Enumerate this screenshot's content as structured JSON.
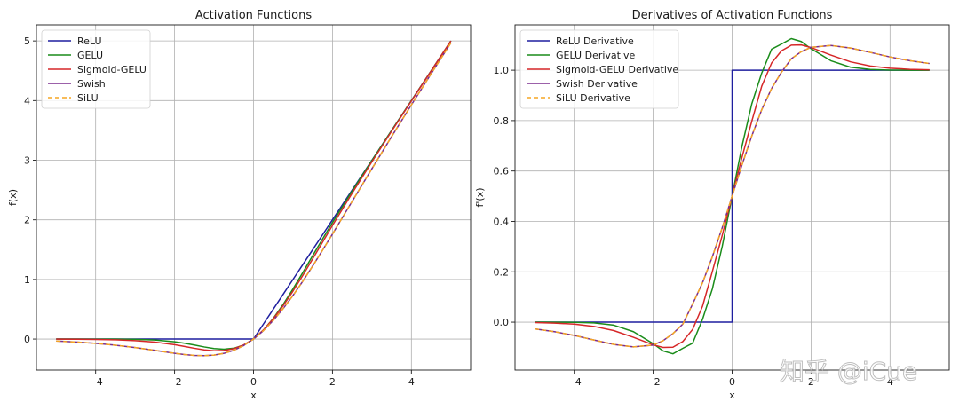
{
  "watermark": "知乎 @iCue",
  "chart_data": [
    {
      "type": "line",
      "title": "Activation Functions",
      "xlabel": "x",
      "ylabel": "f(x)",
      "xlim": [
        -5.5,
        5.5
      ],
      "ylim": [
        -0.52,
        5.27
      ],
      "xticks": [
        -4,
        -2,
        0,
        2,
        4
      ],
      "xtick_labels": [
        "−4",
        "−2",
        "0",
        "2",
        "4"
      ],
      "yticks": [
        0,
        1,
        2,
        3,
        4,
        5
      ],
      "ytick_labels": [
        "0",
        "1",
        "2",
        "3",
        "4",
        "5"
      ],
      "grid": true,
      "legend": "top-left",
      "x": [
        -5,
        -4.5,
        -4,
        -3.5,
        -3,
        -2.5,
        -2,
        -1.75,
        -1.5,
        -1.25,
        -1,
        -0.75,
        -0.5,
        -0.25,
        0,
        0.25,
        0.5,
        0.75,
        1,
        1.25,
        1.5,
        1.75,
        2,
        2.5,
        3,
        3.5,
        4,
        4.5,
        5
      ],
      "series": [
        {
          "name": "ReLU",
          "color": "#1f1f9f",
          "dash": false,
          "values": [
            0,
            0,
            0,
            0,
            0,
            0,
            0,
            0,
            0,
            0,
            0,
            0,
            0,
            0,
            0,
            0.25,
            0.5,
            0.75,
            1,
            1.25,
            1.5,
            1.75,
            2,
            2.5,
            3,
            3.5,
            4,
            4.5,
            5
          ]
        },
        {
          "name": "GELU",
          "color": "#1a8c1a",
          "dash": false,
          "values": [
            0,
            0,
            -0.0001,
            -0.0008,
            -0.004,
            -0.0155,
            -0.0455,
            -0.0702,
            -0.1002,
            -0.132,
            -0.1587,
            -0.17,
            -0.1543,
            -0.1003,
            0,
            0.1497,
            0.3457,
            0.58,
            0.8413,
            1.118,
            1.3998,
            1.6798,
            1.9545,
            2.4845,
            2.996,
            3.4992,
            3.9999,
            4.5,
            5
          ]
        },
        {
          "name": "Sigmoid-GELU",
          "color": "#d62728",
          "dash": false,
          "values": [
            -0.0012,
            -0.0027,
            -0.006,
            -0.0128,
            -0.0262,
            -0.0517,
            -0.0946,
            -0.1238,
            -0.1543,
            -0.1806,
            -0.1957,
            -0.1912,
            -0.1611,
            -0.0981,
            0,
            0.1519,
            0.3389,
            0.5588,
            0.8043,
            1.0694,
            1.3457,
            1.6262,
            1.9054,
            2.4483,
            2.9738,
            3.4872,
            3.994,
            4.4973,
            4.9988
          ]
        },
        {
          "name": "Swish",
          "color": "#7b2d8e",
          "dash": false,
          "values": [
            -0.0335,
            -0.0497,
            -0.0719,
            -0.1026,
            -0.1423,
            -0.1896,
            -0.2384,
            -0.2588,
            -0.2736,
            -0.279,
            -0.2689,
            -0.2396,
            -0.1888,
            -0.1094,
            0,
            0.1406,
            0.3112,
            0.5104,
            0.7311,
            0.971,
            1.2264,
            1.4912,
            1.7616,
            2.3104,
            2.8577,
            3.3974,
            3.9281,
            4.4503,
            4.9665
          ]
        },
        {
          "name": "SiLU",
          "color": "#f5a623",
          "dash": true,
          "values": [
            -0.0335,
            -0.0497,
            -0.0719,
            -0.1026,
            -0.1423,
            -0.1896,
            -0.2384,
            -0.2588,
            -0.2736,
            -0.279,
            -0.2689,
            -0.2396,
            -0.1888,
            -0.1094,
            0,
            0.1406,
            0.3112,
            0.5104,
            0.7311,
            0.971,
            1.2264,
            1.4912,
            1.7616,
            2.3104,
            2.8577,
            3.3974,
            3.9281,
            4.4503,
            4.9665
          ]
        }
      ]
    },
    {
      "type": "line",
      "title": "Derivatives of Activation Functions",
      "xlabel": "x",
      "ylabel": "f'(x)",
      "xlim": [
        -5.5,
        5.5
      ],
      "ylim": [
        -0.19,
        1.18
      ],
      "xticks": [
        -4,
        -2,
        0,
        2,
        4
      ],
      "xtick_labels": [
        "−4",
        "−2",
        "0",
        "2",
        "4"
      ],
      "yticks": [
        0.0,
        0.2,
        0.4,
        0.6,
        0.8,
        1.0
      ],
      "ytick_labels": [
        "0.0",
        "0.2",
        "0.4",
        "0.6",
        "0.8",
        "1.0"
      ],
      "grid": true,
      "legend": "top-left",
      "x": [
        -5,
        -4.5,
        -4,
        -3.5,
        -3,
        -2.5,
        -2,
        -1.75,
        -1.5,
        -1.25,
        -1,
        -0.75,
        -0.5,
        -0.25,
        0,
        0.25,
        0.5,
        0.75,
        1,
        1.25,
        1.5,
        1.75,
        2,
        2.5,
        3,
        3.5,
        4,
        4.5,
        5
      ],
      "series": [
        {
          "name": "ReLU Derivative",
          "color": "#1f1f9f",
          "dash": false,
          "step": true,
          "values": [
            0,
            0,
            0,
            0,
            0,
            0,
            0,
            0,
            0,
            0,
            0,
            0,
            0,
            0,
            0,
            1,
            1,
            1,
            1,
            1,
            1,
            1,
            1,
            1,
            1,
            1,
            1,
            1,
            1
          ]
        },
        {
          "name": "GELU Derivative",
          "color": "#1a8c1a",
          "dash": false,
          "values": [
            0,
            -0.0001,
            -0.0005,
            -0.0029,
            -0.0119,
            -0.0377,
            -0.0852,
            -0.1139,
            -0.1254,
            -0.1038,
            -0.0833,
            0.0112,
            0.1325,
            0.3013,
            0.5,
            0.6987,
            0.8675,
            0.9888,
            1.0833,
            1.1038,
            1.1254,
            1.1139,
            1.0852,
            1.0377,
            1.0119,
            1.0029,
            1.0005,
            1.0001,
            1
          ]
        },
        {
          "name": "Sigmoid-GELU Derivative",
          "color": "#d62728",
          "dash": false,
          "values": [
            -0.0015,
            -0.0036,
            -0.0078,
            -0.0168,
            -0.0332,
            -0.06,
            -0.0898,
            -0.1003,
            -0.0993,
            -0.0769,
            -0.0286,
            0.0632,
            0.2016,
            0.3452,
            0.5,
            0.6548,
            0.7984,
            0.9368,
            1.0286,
            1.0769,
            1.0993,
            1.1003,
            1.0898,
            1.06,
            1.0332,
            1.0168,
            1.0078,
            1.0036,
            1.0015
          ]
        },
        {
          "name": "Swish Derivative",
          "color": "#7b2d8e",
          "dash": false,
          "values": [
            -0.0266,
            -0.0378,
            -0.0525,
            -0.0706,
            -0.0881,
            -0.0982,
            -0.0908,
            -0.0734,
            -0.0455,
            -0.0078,
            0.0723,
            0.1566,
            0.26,
            0.3754,
            0.5,
            0.6246,
            0.74,
            0.8434,
            0.9277,
            0.9922,
            1.0455,
            1.0734,
            1.0908,
            1.0982,
            1.0881,
            1.0706,
            1.0525,
            1.0378,
            1.0266
          ]
        },
        {
          "name": "SiLU Derivative",
          "color": "#f5a623",
          "dash": true,
          "values": [
            -0.0266,
            -0.0378,
            -0.0525,
            -0.0706,
            -0.0881,
            -0.0982,
            -0.0908,
            -0.0734,
            -0.0455,
            -0.0078,
            0.0723,
            0.1566,
            0.26,
            0.3754,
            0.5,
            0.6246,
            0.74,
            0.8434,
            0.9277,
            0.9922,
            1.0455,
            1.0734,
            1.0908,
            1.0982,
            1.0881,
            1.0706,
            1.0525,
            1.0378,
            1.0266
          ]
        }
      ]
    }
  ]
}
